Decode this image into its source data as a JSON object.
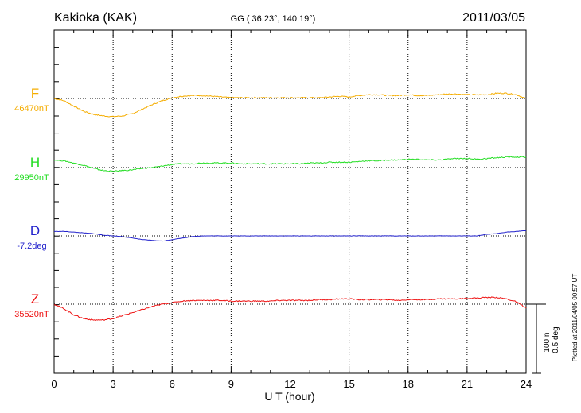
{
  "chart_data": {
    "type": "line",
    "station": "Kakioka (KAK)",
    "coords": "GG ( 36.23°, 140.19°)",
    "date": "2011/03/05",
    "xlabel": "U T (hour)",
    "xlim": [
      0,
      24
    ],
    "xticks": [
      "0",
      "3",
      "6",
      "9",
      "12",
      "15",
      "18",
      "21",
      "24"
    ],
    "grid": true,
    "scale_label_1": "100 nT",
    "scale_label_2": "0.5 deg",
    "plotted_note": "Plotted at 2011/04/05 00:57 UT",
    "series": [
      {
        "name": "F",
        "baseline_label": "46470nT",
        "color": "#f5ad00",
        "x": [
          0,
          0.5,
          1,
          1.5,
          2,
          2.5,
          3,
          3.5,
          4,
          4.5,
          5,
          5.5,
          6,
          6.5,
          7,
          7.5,
          8,
          8.5,
          9,
          9.5,
          10,
          10.5,
          11,
          11.5,
          12,
          12.5,
          13,
          13.5,
          14,
          14.5,
          15,
          15.5,
          16,
          16.5,
          17,
          17.5,
          18,
          18.5,
          19,
          19.5,
          20,
          20.5,
          21,
          21.5,
          22,
          22.5,
          23,
          23.5,
          24
        ],
        "values": [
          0,
          -3,
          -10,
          -17,
          -21,
          -23,
          -24,
          -23,
          -20,
          -14,
          -8,
          -3,
          1,
          3,
          4,
          4,
          3,
          2,
          1,
          1,
          1,
          1,
          1,
          1,
          1,
          1,
          1,
          1,
          2,
          3,
          2,
          4,
          5,
          5,
          4,
          4,
          5,
          4,
          4,
          5,
          6,
          6,
          5,
          5,
          5,
          7,
          7,
          5,
          0
        ]
      },
      {
        "name": "H",
        "baseline_label": "29950nT",
        "color": "#22dd22",
        "x": [
          0,
          0.5,
          1,
          1.5,
          2,
          2.5,
          3,
          3.5,
          4,
          4.5,
          5,
          5.5,
          6,
          6.5,
          7,
          7.5,
          8,
          8.5,
          9,
          9.5,
          10,
          10.5,
          11,
          11.5,
          12,
          12.5,
          13,
          13.5,
          14,
          14.5,
          15,
          15.5,
          16,
          16.5,
          17,
          17.5,
          18,
          18.5,
          19,
          19.5,
          20,
          20.5,
          21,
          21.5,
          22,
          22.5,
          23,
          23.5,
          24
        ],
        "values": [
          10,
          9,
          6,
          3,
          -1,
          -4,
          -5,
          -4,
          -3,
          -1,
          0,
          2,
          4,
          5,
          5,
          6,
          6,
          6,
          6,
          5,
          5,
          5,
          5,
          5,
          5,
          5,
          6,
          6,
          7,
          7,
          7,
          8,
          9,
          9,
          10,
          10,
          11,
          11,
          10,
          10,
          11,
          12,
          12,
          11,
          12,
          13,
          14,
          14,
          14
        ]
      },
      {
        "name": "D",
        "baseline_label": "-7.2deg",
        "color": "#2222cc",
        "x": [
          0,
          0.5,
          1,
          1.5,
          2,
          2.5,
          3,
          3.5,
          4,
          4.5,
          5,
          5.5,
          6,
          6.5,
          7,
          7.5,
          8,
          8.5,
          9,
          9.5,
          10,
          10.5,
          11,
          11.5,
          12,
          12.5,
          13,
          13.5,
          14,
          14.5,
          15,
          15.5,
          16,
          16.5,
          17,
          17.5,
          18,
          18.5,
          19,
          19.5,
          20,
          20.5,
          21,
          21.5,
          22,
          22.5,
          23,
          23.5,
          24
        ],
        "values": [
          6,
          6,
          5,
          4,
          3,
          1,
          0,
          -1,
          -3,
          -5,
          -6,
          -7,
          -5,
          -3,
          -1,
          0,
          0,
          0,
          0,
          0,
          0,
          0,
          0,
          0,
          0,
          0,
          0,
          0,
          0,
          0,
          0,
          0,
          0,
          0,
          0,
          0,
          0,
          0,
          0,
          0,
          0,
          0,
          0,
          0,
          2,
          3,
          5,
          6,
          7
        ]
      },
      {
        "name": "Z",
        "baseline_label": "35520nT",
        "color": "#ee1111",
        "x": [
          0,
          0.5,
          1,
          1.5,
          2,
          2.5,
          3,
          3.5,
          4,
          4.5,
          5,
          5.5,
          6,
          6.5,
          7,
          7.5,
          8,
          8.5,
          9,
          9.5,
          10,
          10.5,
          11,
          11.5,
          12,
          12.5,
          13,
          13.5,
          14,
          14.5,
          15,
          15.5,
          16,
          16.5,
          17,
          17.5,
          18,
          18.5,
          19,
          19.5,
          20,
          20.5,
          21,
          21.5,
          22,
          22.5,
          23,
          23.5,
          24
        ],
        "values": [
          0,
          -6,
          -14,
          -19,
          -21,
          -21,
          -19,
          -15,
          -11,
          -7,
          -3,
          0,
          2,
          4,
          5,
          5,
          5,
          5,
          4,
          4,
          4,
          4,
          4,
          5,
          5,
          5,
          5,
          6,
          6,
          7,
          7,
          6,
          6,
          6,
          6,
          5,
          6,
          6,
          6,
          7,
          7,
          7,
          8,
          8,
          9,
          9,
          7,
          3,
          -5
        ]
      }
    ]
  }
}
